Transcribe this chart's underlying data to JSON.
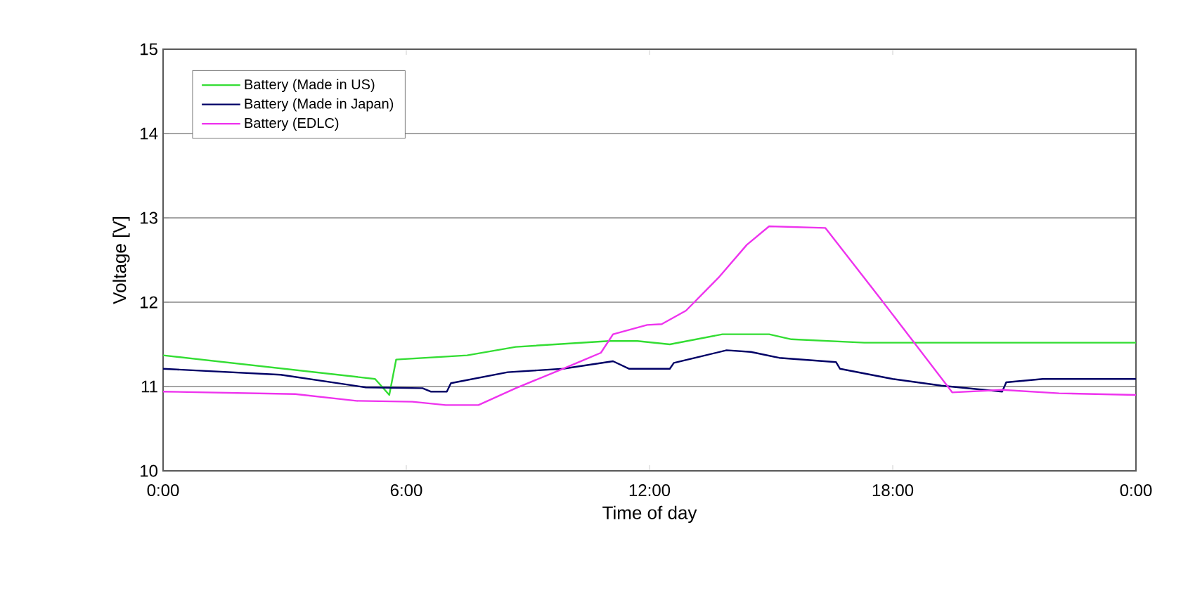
{
  "chart_data": {
    "type": "line",
    "xlabel": "Time of day",
    "ylabel": "Voltage  [V]",
    "xlim": [
      0,
      24
    ],
    "xticks": [
      {
        "value": 0,
        "label": "0:00"
      },
      {
        "value": 6,
        "label": "6:00"
      },
      {
        "value": 12,
        "label": "12:00"
      },
      {
        "value": 18,
        "label": "18:00"
      },
      {
        "value": 24,
        "label": "0:00"
      }
    ],
    "ylim": [
      10,
      15
    ],
    "yticks": [
      10,
      11,
      12,
      13,
      14,
      15
    ],
    "grid": "y",
    "legend": "top left",
    "marker": "none",
    "line_style": "solid",
    "series": [
      {
        "name": "Battery (Made in US)",
        "color": "#33dd33",
        "x": [
          0,
          5.23,
          5.58,
          5.75,
          7.5,
          8.7,
          11.0,
          11.7,
          12.5,
          13.8,
          14.95,
          15.5,
          17.3,
          24
        ],
        "values": [
          11.37,
          11.09,
          10.9,
          11.32,
          11.37,
          11.47,
          11.54,
          11.54,
          11.5,
          11.62,
          11.62,
          11.56,
          11.52,
          11.52
        ]
      },
      {
        "name": "Battery (Made in Japan)",
        "color": "#000066",
        "x": [
          0,
          2.9,
          5.0,
          6.4,
          6.6,
          7.0,
          7.1,
          8.5,
          9.86,
          11.1,
          11.5,
          12.5,
          12.6,
          13.9,
          14.5,
          15.2,
          16.6,
          16.7,
          18.0,
          19.2,
          20.7,
          20.8,
          21.7,
          24
        ],
        "values": [
          11.21,
          11.14,
          10.99,
          10.98,
          10.94,
          10.94,
          11.04,
          11.17,
          11.21,
          11.3,
          11.21,
          11.21,
          11.28,
          11.43,
          11.41,
          11.34,
          11.29,
          11.21,
          11.09,
          11.01,
          10.94,
          11.05,
          11.09,
          11.09
        ]
      },
      {
        "name": "Battery (EDLC)",
        "color": "#ee33ee",
        "x": [
          0,
          3.26,
          4.77,
          6.15,
          6.97,
          7.78,
          8.7,
          9.86,
          10.8,
          11.1,
          11.94,
          12.3,
          12.9,
          13.7,
          14.4,
          14.95,
          16.34,
          17.7,
          19.47,
          20.7,
          22.1,
          24
        ],
        "values": [
          10.94,
          10.91,
          10.83,
          10.82,
          10.78,
          10.78,
          10.98,
          11.21,
          11.4,
          11.62,
          11.73,
          11.74,
          11.9,
          12.29,
          12.68,
          12.9,
          12.88,
          12.04,
          10.93,
          10.96,
          10.92,
          10.9
        ]
      }
    ]
  }
}
